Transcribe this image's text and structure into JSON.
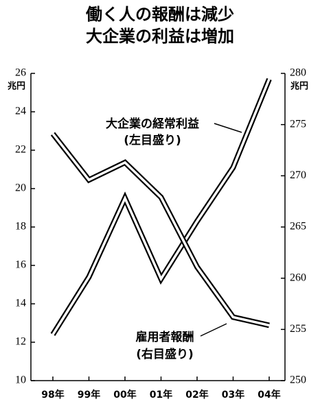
{
  "chart_data": {
    "type": "line",
    "title": [
      "働く人の報酬は減少",
      "大企業の利益は増加"
    ],
    "categories": [
      "98年",
      "99年",
      "00年",
      "01年",
      "02年",
      "03年",
      "04年"
    ],
    "series": [
      {
        "name": "大企業の経常利益",
        "annotation": "(左目盛り)",
        "color": "#000000",
        "values": [
          12.4,
          15.4,
          19.5,
          15.3,
          18.3,
          21.1,
          25.7
        ]
      },
      {
        "name": "雇用者報酬",
        "annotation": "(右目盛り)",
        "axis": "y2",
        "color": "#000000",
        "values": [
          274.1,
          269.6,
          271.3,
          267.9,
          261.1,
          256.2,
          255.4
        ]
      }
    ],
    "ylim": [
      10,
      26
    ],
    "yticks": [
      10,
      12,
      14,
      16,
      18,
      20,
      22,
      24,
      26
    ],
    "y_unit": "兆円",
    "y2lim": [
      250,
      280
    ],
    "y2ticks": [
      250,
      255,
      260,
      265,
      270,
      275,
      280
    ],
    "y2_unit": "兆円",
    "grid": false
  }
}
